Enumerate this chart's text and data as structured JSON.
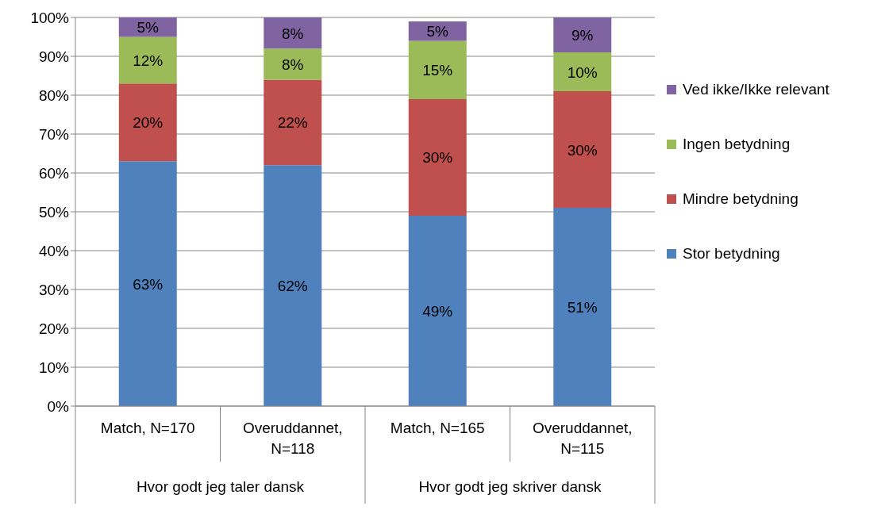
{
  "chart_data": {
    "type": "bar",
    "stacked": true,
    "categories": [
      "Match, N=170",
      "Overuddannet, N=118",
      "Match, N=165",
      "Overuddannet, N=115"
    ],
    "series": [
      {
        "name": "Stor betydning",
        "color": "#4f81bd",
        "values": [
          63,
          62,
          49,
          51
        ],
        "value_labels": [
          "63%",
          "62%",
          "49%",
          "51%"
        ]
      },
      {
        "name": "Mindre betydning",
        "color": "#c0504d",
        "values": [
          20,
          22,
          30,
          30
        ],
        "value_labels": [
          "20%",
          "22%",
          "30%",
          "30%"
        ]
      },
      {
        "name": "Ingen betydning",
        "color": "#9bbb59",
        "values": [
          12,
          8,
          15,
          10
        ],
        "value_labels": [
          "12%",
          "8%",
          "15%",
          "10%"
        ]
      },
      {
        "name": "Ved ikke/Ikke relevant",
        "color": "#8064a2",
        "values": [
          5,
          8,
          5,
          9
        ],
        "value_labels": [
          "5%",
          "8%",
          "5%",
          "9%"
        ]
      }
    ],
    "annotations": [
      "Hvor godt jeg taler dansk",
      "Hvor godt jeg skriver dansk"
    ],
    "ylim": [
      0,
      100
    ],
    "yticks": [
      {
        "value": 0,
        "label": "0%"
      },
      {
        "value": 10,
        "label": "10%"
      },
      {
        "value": 20,
        "label": "20%"
      },
      {
        "value": 30,
        "label": "30%"
      },
      {
        "value": 40,
        "label": "40%"
      },
      {
        "value": 50,
        "label": "50%"
      },
      {
        "value": 60,
        "label": "60%"
      },
      {
        "value": 70,
        "label": "70%"
      },
      {
        "value": 80,
        "label": "80%"
      },
      {
        "value": 90,
        "label": "90%"
      },
      {
        "value": 100,
        "label": "100%"
      }
    ],
    "grid": "y",
    "legend": "right"
  }
}
